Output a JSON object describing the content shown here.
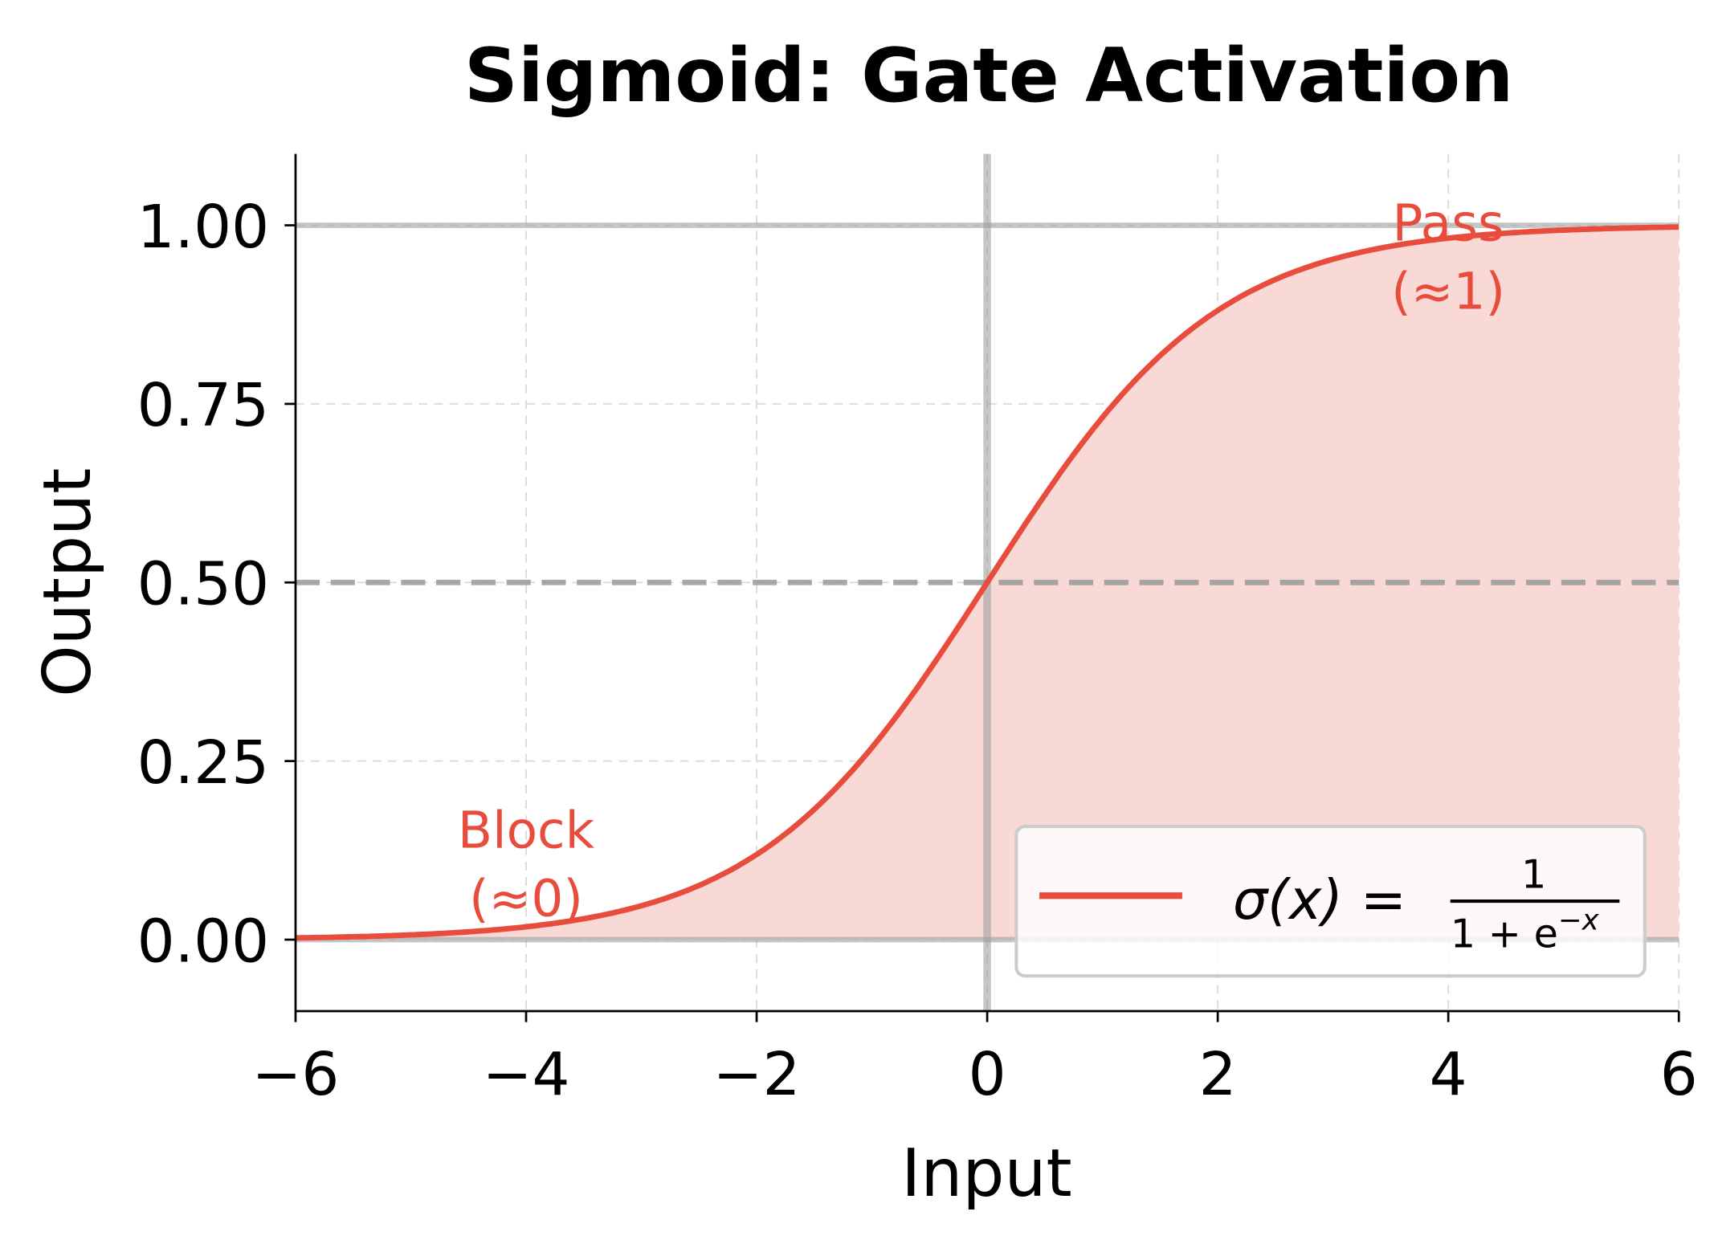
{
  "chart_data": {
    "type": "line",
    "title": "Sigmoid: Gate Activation",
    "xlabel": "Input",
    "ylabel": "Output",
    "xlim": [
      -6,
      6
    ],
    "ylim": [
      -0.1,
      1.1
    ],
    "xticks": [
      -6,
      -4,
      -2,
      0,
      2,
      4,
      6
    ],
    "xtick_labels": [
      "−6",
      "−4",
      "−2",
      "0",
      "2",
      "4",
      "6"
    ],
    "yticks": [
      0,
      0.25,
      0.5,
      0.75,
      1.0
    ],
    "ytick_labels": [
      "0.00",
      "0.25",
      "0.50",
      "0.75",
      "1.00"
    ],
    "grid": true,
    "function": "sigmoid",
    "series": [
      {
        "name": "σ(x) = 1 / (1 + e^−x)",
        "color": "#e74c3c",
        "fill_to_zero": true,
        "fill_color": "#f8d9d6",
        "x": [
          -6,
          -5,
          -4,
          -3,
          -2,
          -1,
          0,
          1,
          2,
          3,
          4,
          5,
          6
        ],
        "y": [
          0.0025,
          0.0067,
          0.018,
          0.047,
          0.119,
          0.269,
          0.5,
          0.731,
          0.881,
          0.953,
          0.982,
          0.9933,
          0.9975
        ]
      }
    ],
    "reference_lines": [
      {
        "orientation": "horizontal",
        "value": 0,
        "style": "solid",
        "color": "#999999"
      },
      {
        "orientation": "horizontal",
        "value": 1,
        "style": "solid",
        "color": "#999999"
      },
      {
        "orientation": "horizontal",
        "value": 0.5,
        "style": "dashed",
        "color": "#999999"
      },
      {
        "orientation": "vertical",
        "value": 0,
        "style": "solid",
        "color": "#999999"
      }
    ],
    "annotations": [
      {
        "lines": [
          "Block",
          "(≈0)"
        ],
        "x": -4,
        "y": 0.07,
        "color": "#e74c3c"
      },
      {
        "lines": [
          "Pass",
          "(≈1)"
        ],
        "x": 4,
        "y": 0.92,
        "color": "#e74c3c"
      }
    ],
    "legend": {
      "placement": "lower-right",
      "label_main": "σ(x) = ",
      "label_num": "1",
      "label_den": "1 + e",
      "label_exp": "−x"
    }
  }
}
